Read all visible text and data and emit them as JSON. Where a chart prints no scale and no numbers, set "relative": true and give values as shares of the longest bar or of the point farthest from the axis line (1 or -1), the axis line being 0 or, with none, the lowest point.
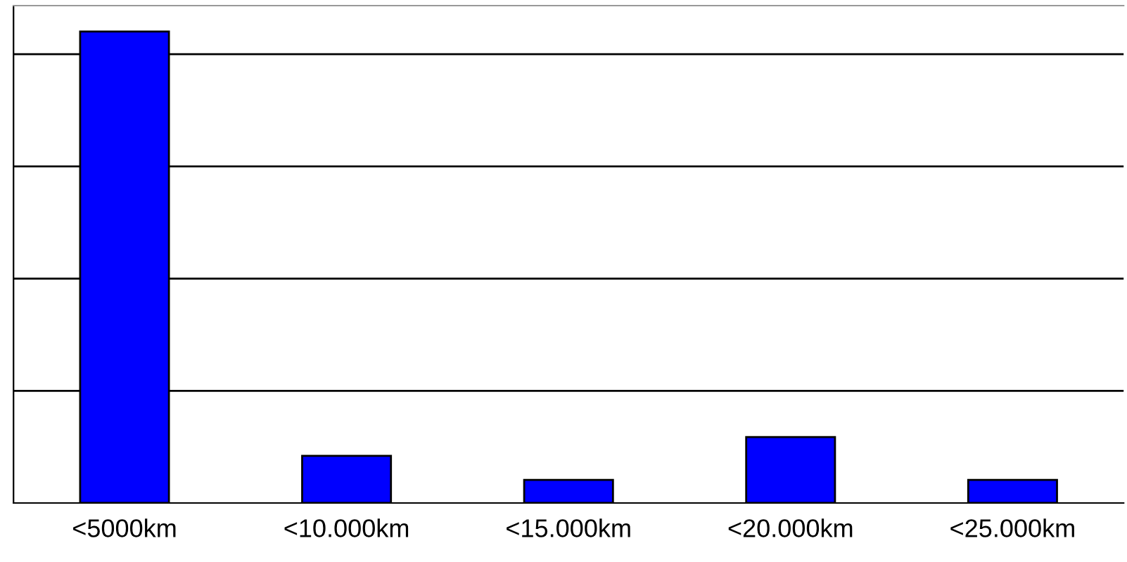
{
  "chart_data": {
    "type": "bar",
    "categories": [
      "<5000km",
      "<10.000km",
      "<15.000km",
      "<20.000km",
      "<25.000km"
    ],
    "values": [
      1,
      0.1,
      0.049,
      0.14,
      0.049
    ],
    "color": "#0000ff",
    "relative": true,
    "grid": "y"
  }
}
